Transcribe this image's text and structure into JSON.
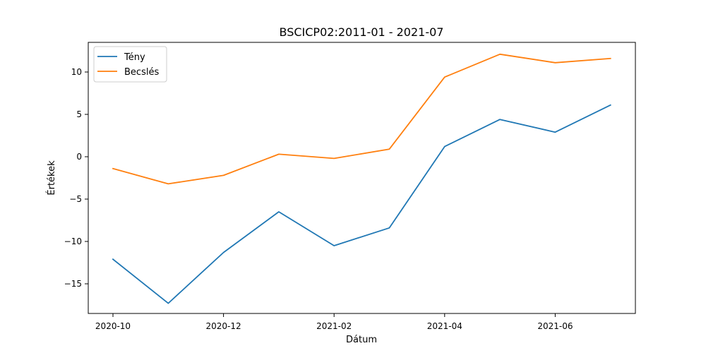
{
  "chart_data": {
    "type": "line",
    "title": "BSCICP02:2011-01 - 2021-07",
    "xlabel": "Dátum",
    "ylabel": "Értékek",
    "x": [
      "2020-10",
      "2020-11",
      "2020-12",
      "2021-01",
      "2021-02",
      "2021-03",
      "2021-04",
      "2021-05",
      "2021-06",
      "2021-07"
    ],
    "x_tick_labels": [
      "2020-10",
      "2020-12",
      "2021-02",
      "2021-04",
      "2021-06"
    ],
    "y_tick_labels": [
      "−15",
      "−10",
      "−5",
      "0",
      "5",
      "10"
    ],
    "y_ticks": [
      -15,
      -10,
      -5,
      0,
      5,
      10
    ],
    "ylim": [
      -18.5,
      13.5
    ],
    "legend_position": "upper-left",
    "grid": false,
    "series": [
      {
        "name": "Tény",
        "color": "#1f77b4",
        "values": [
          -12.1,
          -17.3,
          -11.3,
          -6.5,
          -10.5,
          -8.4,
          1.2,
          4.4,
          2.9,
          6.1
        ]
      },
      {
        "name": "Becslés",
        "color": "#ff7f0e",
        "values": [
          -1.4,
          -3.2,
          -2.2,
          0.3,
          -0.2,
          0.9,
          9.4,
          12.1,
          11.1,
          11.6
        ]
      }
    ]
  }
}
